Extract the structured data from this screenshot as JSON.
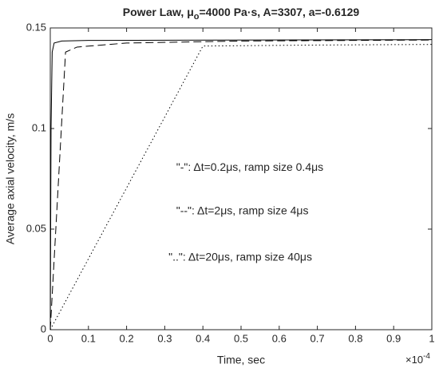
{
  "chart_data": {
    "type": "line",
    "title": {
      "main": "Power Law, μ",
      "subscript": "o",
      "rest": "=4000 Pa·s, A=3307, a=-0.6129"
    },
    "x_label": "Time, sec",
    "y_label": "Average axial velocity, m/s",
    "x_exponent": {
      "base": "×10",
      "power": "-4"
    },
    "xlim": [
      0,
      1
    ],
    "xticks": [
      0,
      0.1,
      0.2,
      0.3,
      0.4,
      0.5,
      0.6,
      0.7,
      0.8,
      0.9,
      1
    ],
    "ylim": [
      0,
      0.15
    ],
    "yticks": [
      0,
      0.05,
      0.1,
      0.15
    ],
    "grid": false,
    "series": [
      {
        "color": "#000000",
        "dash": "solid",
        "x": [
          0,
          0.002,
          0.005,
          0.01,
          0.03,
          0.1,
          1
        ],
        "values": [
          0,
          0.1,
          0.138,
          0.1425,
          0.1435,
          0.1438,
          0.1442
        ]
      },
      {
        "color": "#000000",
        "dash": "dashed",
        "x": [
          0,
          0.04,
          0.07,
          0.2,
          0.5,
          1
        ],
        "values": [
          0,
          0.138,
          0.1405,
          0.1425,
          0.1435,
          0.144
        ]
      },
      {
        "color": "#000000",
        "dash": "dotted",
        "x": [
          0,
          0.4,
          0.7,
          1
        ],
        "values": [
          0,
          0.141,
          0.1415,
          0.1418
        ]
      }
    ],
    "annotations": [
      {
        "text": "\"-\": Δt=0.2μs, ramp size 0.4μs",
        "x": 0.33,
        "y": 0.0805
      },
      {
        "text": "\"--\": Δt=2μs, ramp size 4μs",
        "x": 0.33,
        "y": 0.0588
      },
      {
        "text": "\"..\": Δt=20μs, ramp size 40μs",
        "x": 0.31,
        "y": 0.0358
      }
    ]
  }
}
